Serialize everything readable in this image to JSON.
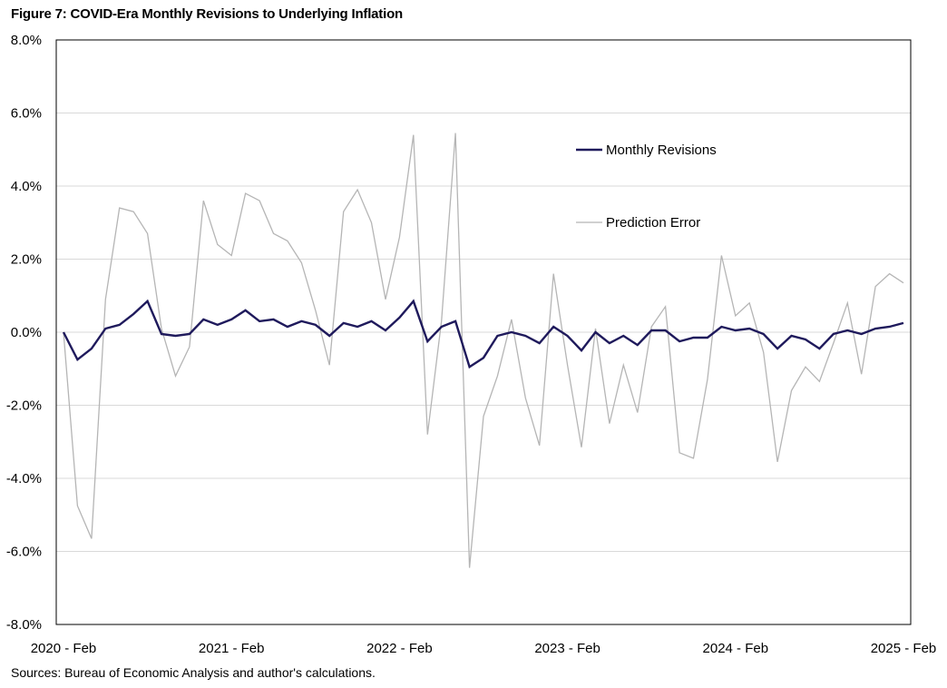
{
  "title": "Figure 7: COVID-Era Monthly Revisions to Underlying Inflation",
  "source": "Sources: Bureau of Economic Analysis and author's calculations.",
  "colors": {
    "monthly_revisions": "#1f1a5c",
    "prediction_error": "#b5b5b5",
    "grid": "#d9d9d9",
    "frame": "#000000"
  },
  "chart_data": {
    "type": "line",
    "x_ticks": [
      "2020 - Feb",
      "2021 - Feb",
      "2022 - Feb",
      "2023 - Feb",
      "2024 - Feb",
      "2025 - Feb"
    ],
    "y_ticks": [
      "8.0%",
      "6.0%",
      "4.0%",
      "2.0%",
      "0.0%",
      "-2.0%",
      "-4.0%",
      "-6.0%",
      "-8.0%"
    ],
    "ylim": [
      -8,
      8
    ],
    "x_start": "2020-02",
    "n_months": 61,
    "legend": {
      "placement": "upper-center"
    },
    "series": [
      {
        "name": "Monthly Revisions",
        "color": "#1f1a5c",
        "values": [
          0.0,
          -0.75,
          -0.45,
          0.1,
          0.2,
          0.5,
          0.85,
          -0.05,
          -0.1,
          -0.05,
          0.35,
          0.2,
          0.35,
          0.6,
          0.3,
          0.35,
          0.15,
          0.3,
          0.2,
          -0.1,
          0.25,
          0.15,
          0.3,
          0.05,
          0.4,
          0.85,
          -0.25,
          0.15,
          0.3,
          -0.95,
          -0.7,
          -0.1,
          0.0,
          -0.1,
          -0.3,
          0.15,
          -0.1,
          -0.5,
          0.0,
          -0.3,
          -0.1,
          -0.35,
          0.05,
          0.05,
          -0.25,
          -0.15,
          -0.15,
          0.15,
          0.05,
          0.1,
          -0.05,
          -0.45,
          -0.1,
          -0.2,
          -0.45,
          -0.05,
          0.05,
          -0.05,
          0.1,
          0.15,
          0.25
        ]
      },
      {
        "name": "Prediction Error",
        "color": "#b5b5b5",
        "values": [
          0.0,
          -4.75,
          -5.65,
          0.9,
          3.4,
          3.3,
          2.7,
          0.1,
          -1.2,
          -0.4,
          3.6,
          2.4,
          2.1,
          3.8,
          3.6,
          2.7,
          2.5,
          1.9,
          0.6,
          -0.9,
          3.3,
          3.9,
          3.0,
          0.9,
          2.6,
          5.4,
          -2.8,
          0.3,
          5.45,
          -6.45,
          -2.3,
          -1.2,
          0.35,
          -1.8,
          -3.1,
          1.6,
          -0.9,
          -3.15,
          0.1,
          -2.5,
          -0.9,
          -2.2,
          0.15,
          0.7,
          -3.3,
          -3.45,
          -1.3,
          2.1,
          0.45,
          0.8,
          -0.55,
          -3.55,
          -1.6,
          -0.95,
          -1.35,
          -0.3,
          0.8,
          -1.15,
          1.25,
          1.6,
          1.35
        ]
      }
    ]
  }
}
